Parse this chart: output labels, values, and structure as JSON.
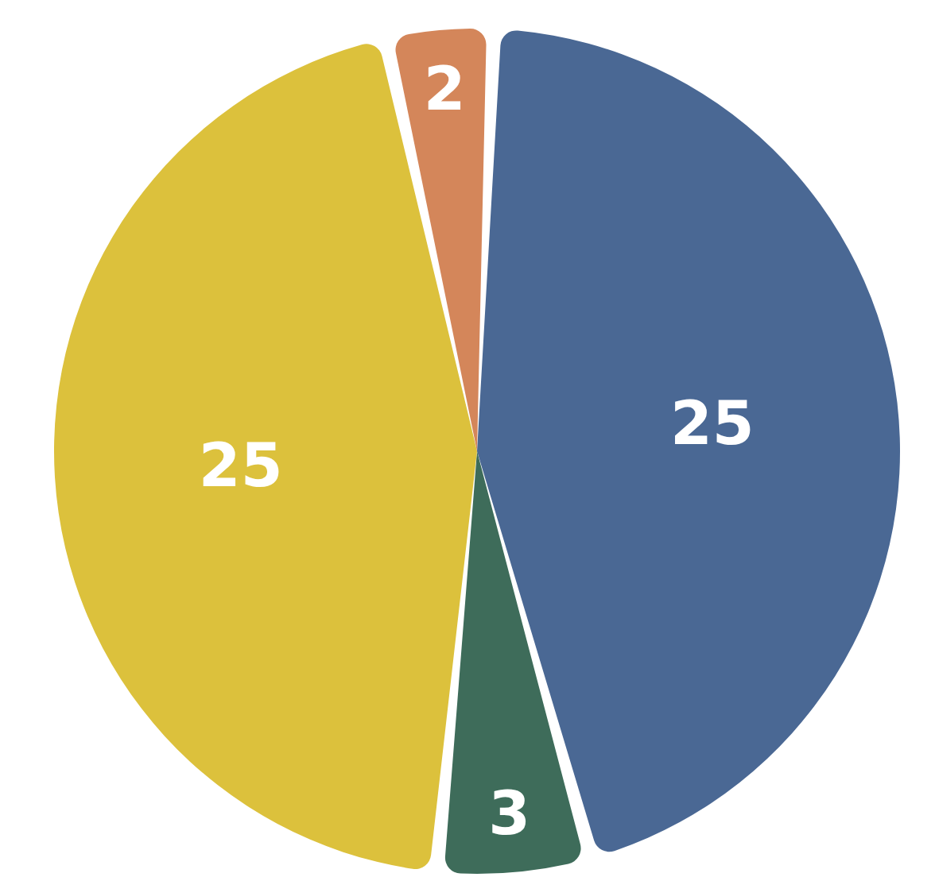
{
  "chart_data": {
    "type": "pie",
    "categories": [
      null,
      null,
      null,
      null
    ],
    "values": [
      25,
      3,
      25,
      2
    ],
    "colors": [
      "#4a6894",
      "#3e6c5a",
      "#dcc13c",
      "#d4865a"
    ],
    "data_labels": true
  }
}
